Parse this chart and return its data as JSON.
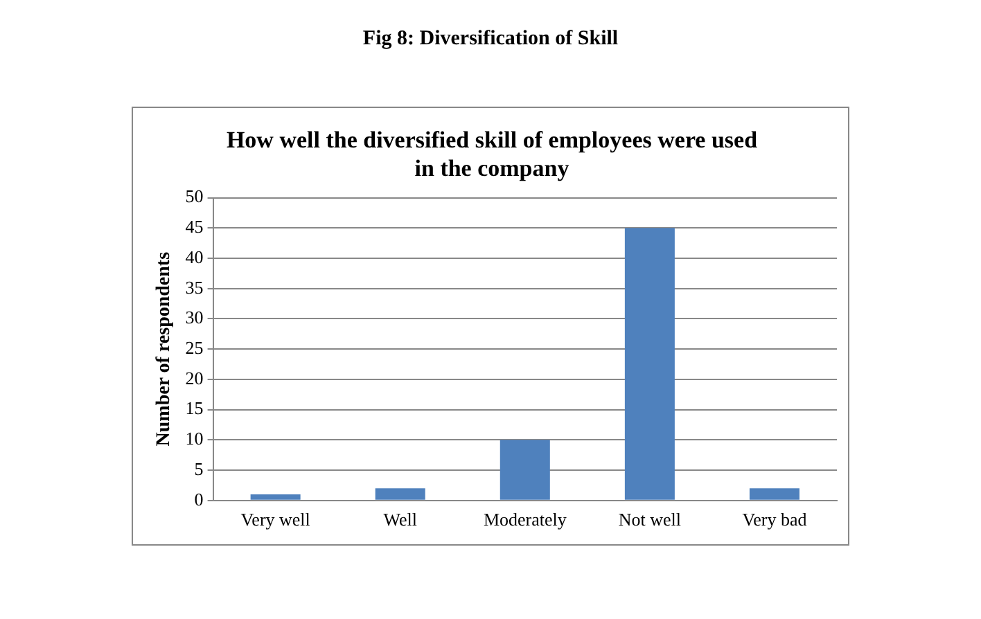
{
  "chart_data": {
    "type": "bar",
    "title": "Fig 8: Diversification of Skill",
    "subtitle": "How well the diversified skill of employees were used in the company",
    "ylabel": "Number of respondents",
    "categories": [
      "Very well",
      "Well",
      "Moderately",
      "Not well",
      "Very bad"
    ],
    "values": [
      1,
      2,
      10,
      45,
      2
    ],
    "color": "#4f81bd",
    "ylim": [
      0,
      50
    ],
    "yticks": [
      0,
      5,
      10,
      15,
      20,
      25,
      30,
      35,
      40,
      45,
      50
    ],
    "grid": "y",
    "legend": false
  }
}
